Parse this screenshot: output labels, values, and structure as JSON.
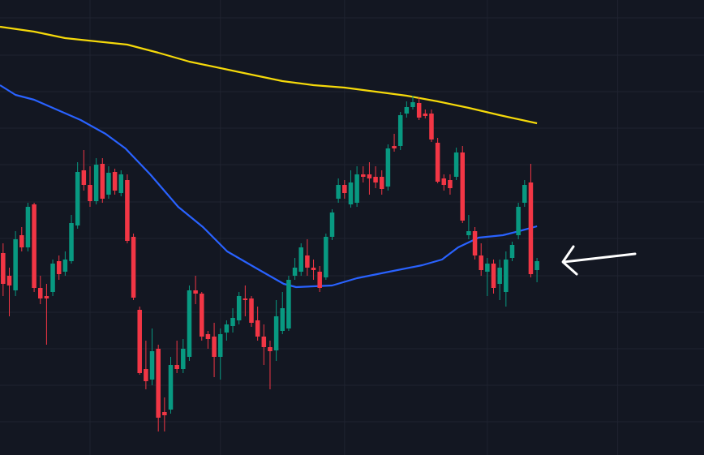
{
  "chart_data": {
    "type": "candlestick",
    "xlim": [
      -0.5,
      112.9
    ],
    "ylim": [
      0,
      561
    ],
    "xticks": [
      14,
      35,
      55,
      78,
      99
    ],
    "yticks": [
      41,
      86,
      131,
      176,
      221,
      267,
      312,
      358,
      403,
      448,
      493,
      539
    ],
    "grid": true,
    "up_color": "#089981",
    "down_color": "#f23645",
    "x": [
      0,
      1,
      2,
      3,
      4,
      5,
      6,
      7,
      8,
      9,
      10,
      11,
      12,
      13,
      14,
      15,
      16,
      17,
      18,
      19,
      20,
      21,
      22,
      23,
      24,
      25,
      26,
      27,
      28,
      29,
      30,
      31,
      32,
      33,
      34,
      35,
      36,
      37,
      38,
      39,
      40,
      41,
      42,
      43,
      44,
      45,
      46,
      47,
      48,
      49,
      50,
      51,
      52,
      53,
      54,
      55,
      56,
      57,
      58,
      59,
      60,
      61,
      62,
      63,
      64,
      65,
      66,
      67,
      68,
      69,
      70,
      71,
      72,
      73,
      74,
      75,
      76,
      77,
      78,
      79,
      80,
      81,
      82,
      83,
      84,
      85,
      86
    ],
    "open": [
      249,
      221,
      203,
      271,
      256,
      309,
      206,
      196,
      201,
      239,
      226,
      239,
      283,
      351,
      333,
      313,
      359,
      321,
      349,
      323,
      339,
      269,
      179,
      106,
      93,
      131,
      53,
      56,
      111,
      106,
      121,
      203,
      199,
      149,
      146,
      121,
      151,
      159,
      166,
      193,
      193,
      166,
      146,
      133,
      129,
      153,
      156,
      221,
      226,
      246,
      231,
      226,
      219,
      269,
      316,
      333,
      309,
      311,
      346,
      346,
      343,
      343,
      331,
      381,
      381,
      421,
      429,
      434,
      421,
      421,
      385,
      341,
      339,
      343,
      373,
      271,
      276,
      246,
      226,
      236,
      211,
      201,
      243,
      271,
      311,
      336,
      228
    ],
    "high": [
      261,
      231,
      276,
      281,
      311,
      311,
      221,
      211,
      241,
      246,
      251,
      296,
      361,
      376,
      356,
      366,
      366,
      356,
      353,
      351,
      346,
      273,
      183,
      141,
      156,
      136,
      71,
      121,
      141,
      143,
      209,
      221,
      201,
      153,
      163,
      156,
      166,
      181,
      201,
      209,
      196,
      183,
      161,
      141,
      191,
      201,
      221,
      243,
      261,
      266,
      241,
      233,
      273,
      303,
      341,
      339,
      351,
      356,
      356,
      361,
      356,
      351,
      383,
      396,
      423,
      436,
      443,
      441,
      426,
      426,
      391,
      346,
      346,
      379,
      381,
      296,
      281,
      261,
      243,
      241,
      241,
      251,
      263,
      311,
      339,
      359,
      243
    ],
    "low": [
      196,
      171,
      196,
      251,
      251,
      201,
      186,
      136,
      196,
      216,
      221,
      236,
      279,
      326,
      306,
      309,
      311,
      316,
      321,
      319,
      261,
      191,
      99,
      81,
      86,
      29,
      29,
      51,
      101,
      101,
      116,
      186,
      141,
      131,
      96,
      93,
      141,
      151,
      161,
      171,
      158,
      141,
      111,
      81,
      116,
      149,
      153,
      216,
      221,
      221,
      216,
      201,
      216,
      265,
      311,
      316,
      305,
      306,
      336,
      321,
      329,
      321,
      326,
      374,
      376,
      416,
      426,
      413,
      415,
      386,
      335,
      326,
      321,
      339,
      286,
      266,
      241,
      221,
      196,
      199,
      191,
      183,
      239,
      266,
      306,
      219,
      213
    ],
    "close": [
      211,
      209,
      266,
      256,
      306,
      206,
      193,
      193,
      236,
      223,
      241,
      286,
      349,
      333,
      313,
      358,
      316,
      348,
      326,
      346,
      264,
      194,
      101,
      91,
      128,
      46,
      49,
      111,
      106,
      131,
      203,
      199,
      146,
      143,
      121,
      149,
      161,
      169,
      196,
      191,
      163,
      146,
      133,
      128,
      171,
      181,
      216,
      231,
      256,
      231,
      228,
      206,
      269,
      299,
      333,
      323,
      336,
      346,
      343,
      341,
      336,
      328,
      378,
      378,
      419,
      429,
      435,
      416,
      418,
      389,
      337,
      333,
      329,
      373,
      289,
      276,
      246,
      228,
      236,
      206,
      231,
      241,
      259,
      306,
      333,
      223,
      239
    ],
    "series": [
      {
        "color": "#f5d90a",
        "x": [
          -0.5,
          5,
          10,
          20,
          25,
          30,
          40,
          45,
          50,
          55,
          60,
          65,
          70,
          75,
          80,
          86
        ],
        "values": [
          528,
          522,
          514,
          506,
          496,
          485,
          469,
          461,
          456,
          453,
          448,
          443,
          436,
          428,
          419,
          409
        ]
      },
      {
        "color": "#2962ff",
        "x": [
          -0.5,
          2,
          5,
          8.6,
          12.5,
          16.5,
          19.7,
          23.7,
          28.2,
          32.2,
          36.1,
          41.3,
          45.2,
          47.2,
          53,
          57,
          62.2,
          67.5,
          70.7,
          73.3,
          76.6,
          80.5,
          83.1,
          86
        ],
        "values": [
          456,
          444,
          438,
          426,
          413,
          396,
          378,
          346,
          306,
          281,
          251,
          228,
          211,
          207,
          209,
          218,
          226,
          234,
          241,
          256,
          268,
          271,
          276,
          282
        ]
      }
    ]
  }
}
